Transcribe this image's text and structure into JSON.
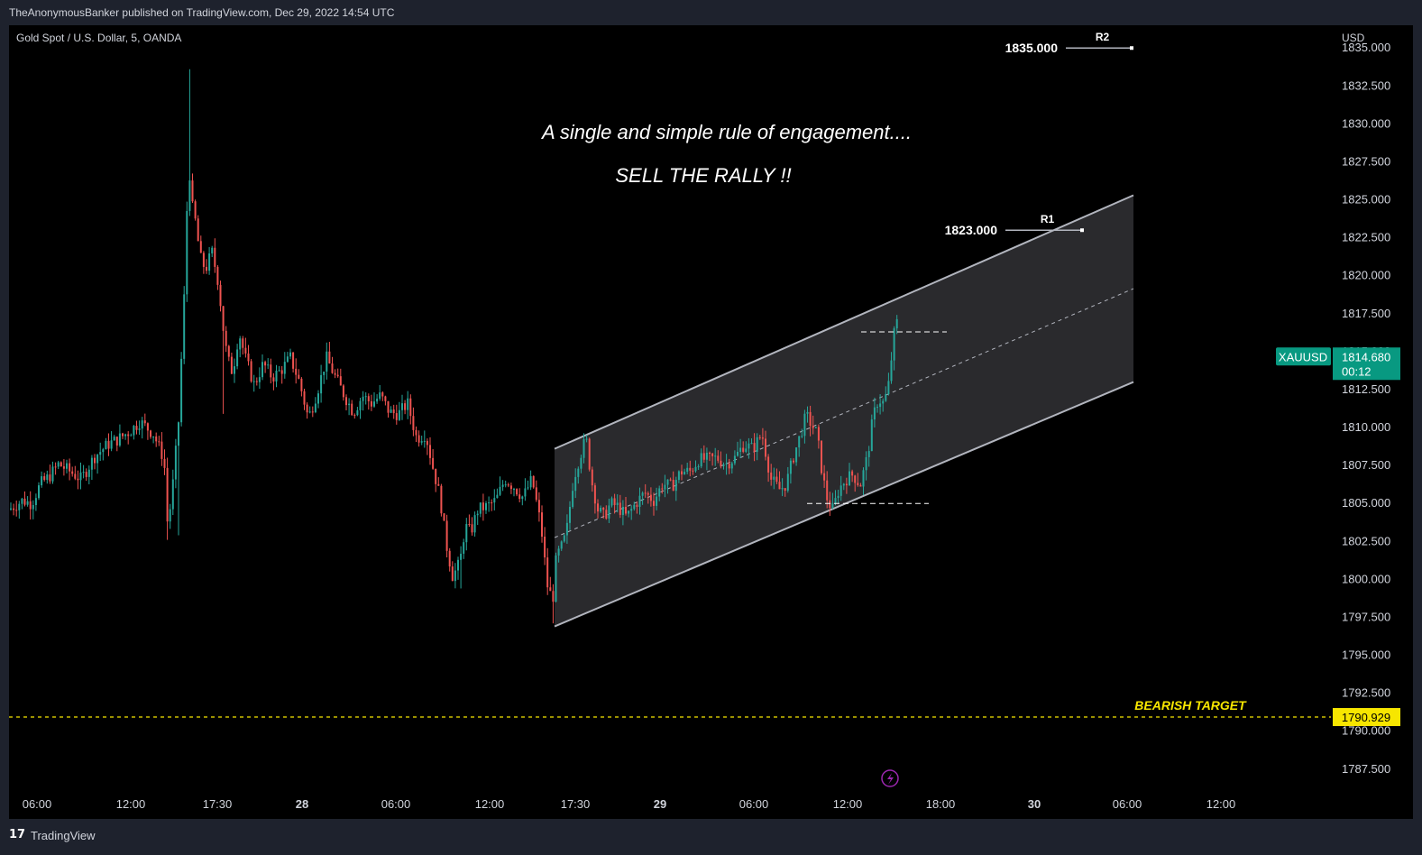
{
  "header": {
    "text": "TheAnonymousBanker published on TradingView.com, Dec 29, 2022 14:54 UTC"
  },
  "footer": {
    "logo": "17",
    "brand": "TradingView"
  },
  "colors": {
    "background": "#000000",
    "frame": "#1e222d",
    "up": "#26a69a",
    "down": "#ef5350",
    "channel_fill": "#2a2a2d",
    "target": "#f7e600",
    "badge": "#089981"
  },
  "chart_data": {
    "type": "candlestick",
    "symbol_title": "Gold Spot / U.S. Dollar, 5, OANDA",
    "currency": "USD",
    "ylim": [
      1786,
      1836.5
    ],
    "y_ticks": [
      "1835.000",
      "1832.500",
      "1830.000",
      "1827.500",
      "1825.000",
      "1822.500",
      "1820.000",
      "1817.500",
      "1815.000",
      "1812.500",
      "1810.000",
      "1807.500",
      "1805.000",
      "1802.500",
      "1800.000",
      "1797.500",
      "1795.000",
      "1792.500",
      "1790.000",
      "1787.500"
    ],
    "x_ticks": [
      {
        "label": "06:00",
        "bold": false
      },
      {
        "label": "12:00",
        "bold": false
      },
      {
        "label": "17:30",
        "bold": false
      },
      {
        "label": "28",
        "bold": true
      },
      {
        "label": "06:00",
        "bold": false
      },
      {
        "label": "12:00",
        "bold": false
      },
      {
        "label": "17:30",
        "bold": false
      },
      {
        "label": "29",
        "bold": true
      },
      {
        "label": "06:00",
        "bold": false
      },
      {
        "label": "12:00",
        "bold": false
      },
      {
        "label": "18:00",
        "bold": false
      },
      {
        "label": "30",
        "bold": true
      },
      {
        "label": "06:00",
        "bold": false
      },
      {
        "label": "12:00",
        "bold": false
      }
    ],
    "close_path": [
      [
        0,
        1804.6
      ],
      [
        15,
        1805.2
      ],
      [
        25,
        1805.0
      ],
      [
        35,
        1806.3
      ],
      [
        45,
        1806.8
      ],
      [
        55,
        1807.6
      ],
      [
        65,
        1807.2
      ],
      [
        80,
        1806.6
      ],
      [
        95,
        1808.1
      ],
      [
        110,
        1808.9
      ],
      [
        120,
        1809.2
      ],
      [
        135,
        1809.8
      ],
      [
        145,
        1810.4
      ],
      [
        160,
        1809.6
      ],
      [
        172,
        1807.9
      ],
      [
        176,
        1803.4
      ],
      [
        181,
        1805.8
      ],
      [
        188,
        1810.4
      ],
      [
        195,
        1819.6
      ],
      [
        199,
        1827.8
      ],
      [
        203,
        1824.6
      ],
      [
        207,
        1823.5
      ],
      [
        212,
        1821.2
      ],
      [
        218,
        1820.4
      ],
      [
        225,
        1821.6
      ],
      [
        232,
        1819.6
      ],
      [
        238,
        1816.3
      ],
      [
        242,
        1814.6
      ],
      [
        248,
        1813.6
      ],
      [
        255,
        1816.3
      ],
      [
        262,
        1814.6
      ],
      [
        272,
        1812.8
      ],
      [
        282,
        1814.2
      ],
      [
        292,
        1813.3
      ],
      [
        302,
        1813.8
      ],
      [
        312,
        1814.6
      ],
      [
        322,
        1813.0
      ],
      [
        332,
        1810.6
      ],
      [
        342,
        1812.4
      ],
      [
        352,
        1814.6
      ],
      [
        362,
        1813.3
      ],
      [
        372,
        1812.1
      ],
      [
        382,
        1811.0
      ],
      [
        392,
        1812.1
      ],
      [
        402,
        1811.6
      ],
      [
        412,
        1812.1
      ],
      [
        422,
        1811.0
      ],
      [
        432,
        1810.9
      ],
      [
        442,
        1811.6
      ],
      [
        452,
        1809.3
      ],
      [
        462,
        1809.6
      ],
      [
        470,
        1807.4
      ],
      [
        478,
        1805.4
      ],
      [
        485,
        1802.3
      ],
      [
        492,
        1800.2
      ],
      [
        500,
        1801.1
      ],
      [
        506,
        1803.5
      ],
      [
        512,
        1803.1
      ],
      [
        520,
        1804.6
      ],
      [
        530,
        1804.8
      ],
      [
        540,
        1805.2
      ],
      [
        550,
        1806.6
      ],
      [
        560,
        1806.1
      ],
      [
        570,
        1805.4
      ],
      [
        580,
        1806.6
      ],
      [
        590,
        1803.5
      ],
      [
        597,
        1799.6
      ],
      [
        603,
        1798.6
      ],
      [
        607,
        1801.5
      ],
      [
        612,
        1802.0
      ],
      [
        618,
        1803.0
      ],
      [
        626,
        1806.6
      ],
      [
        633,
        1808.1
      ],
      [
        640,
        1809.3
      ],
      [
        646,
        1806.5
      ],
      [
        653,
        1804.6
      ],
      [
        660,
        1804.1
      ],
      [
        667,
        1805.0
      ],
      [
        675,
        1804.8
      ],
      [
        685,
        1804.1
      ],
      [
        695,
        1805.0
      ],
      [
        705,
        1805.7
      ],
      [
        715,
        1805.2
      ],
      [
        725,
        1806.3
      ],
      [
        735,
        1806.1
      ],
      [
        745,
        1807.1
      ],
      [
        755,
        1807.1
      ],
      [
        765,
        1807.9
      ],
      [
        775,
        1807.9
      ],
      [
        785,
        1808.0
      ],
      [
        795,
        1807.6
      ],
      [
        805,
        1808.0
      ],
      [
        815,
        1808.9
      ],
      [
        825,
        1808.6
      ],
      [
        835,
        1809.6
      ],
      [
        845,
        1806.6
      ],
      [
        855,
        1805.9
      ],
      [
        862,
        1806.3
      ],
      [
        870,
        1808.1
      ],
      [
        878,
        1809.6
      ],
      [
        884,
        1810.8
      ],
      [
        890,
        1810.2
      ],
      [
        896,
        1809.6
      ],
      [
        902,
        1806.9
      ],
      [
        908,
        1805.1
      ],
      [
        914,
        1804.6
      ],
      [
        920,
        1805.9
      ],
      [
        928,
        1806.6
      ],
      [
        936,
        1806.9
      ],
      [
        944,
        1806.2
      ],
      [
        952,
        1808.1
      ],
      [
        958,
        1810.6
      ],
      [
        964,
        1811.9
      ],
      [
        970,
        1811.6
      ],
      [
        975,
        1812.6
      ],
      [
        979,
        1814.8
      ],
      [
        983,
        1816.9
      ]
    ],
    "channel": {
      "upper_start": [
        605,
        1808.6
      ],
      "upper_end": [
        1247,
        1825.3
      ],
      "lower_start": [
        605,
        1796.9
      ],
      "lower_end": [
        1247,
        1813.0
      ]
    },
    "swing_lines": [
      {
        "from": [
          945,
          1816.3
        ],
        "to": [
          1040,
          1816.3
        ]
      },
      {
        "from": [
          885,
          1805.0
        ],
        "to": [
          1020,
          1805.0
        ]
      }
    ],
    "levels": [
      {
        "value_label": "1835.000",
        "tag": "R2",
        "value": 1835.0,
        "from": 1172,
        "to": 1245
      },
      {
        "value_label": "1823.000",
        "tag": "R1",
        "value": 1823.0,
        "from": 1105,
        "to": 1190
      }
    ],
    "annotations": [
      "A single and simple rule of engagement....",
      "SELL THE RALLY !!"
    ],
    "target": {
      "label": "BEARISH TARGET",
      "value_label": "1790.929",
      "value": 1790.929
    },
    "last_price": {
      "symbol": "XAUUSD",
      "value_label": "1814.680",
      "countdown": "00:12",
      "value": 1814.68
    },
    "replay_icon": "lightning-icon"
  }
}
